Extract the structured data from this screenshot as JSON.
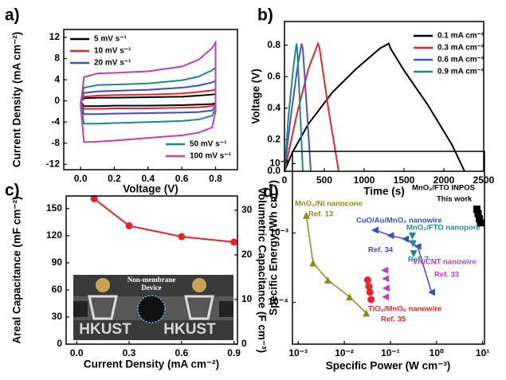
{
  "chart_data": [
    {
      "panel_label": "a)",
      "type": "line",
      "x_label": "Voltage (V)",
      "y_label": "Current Density (mA cm⁻²)",
      "xlim": [
        -0.1,
        0.93
      ],
      "ylim": [
        -13,
        13.5
      ],
      "xticks": [
        {
          "value": 0,
          "label": "0.0"
        },
        0.2,
        0.4,
        0.6,
        0.8
      ],
      "yticks": [
        -12,
        -8,
        -4,
        0,
        4,
        8,
        12
      ],
      "x": [
        0,
        0.02,
        0.1,
        0.2,
        0.4,
        0.6,
        0.7,
        0.78,
        0.8,
        0.8,
        0.78,
        0.7,
        0.6,
        0.4,
        0.2,
        0.1,
        0.02,
        0
      ],
      "series": [
        {
          "name": "5 mV s⁻¹",
          "color": "#000000",
          "legend": "upper left",
          "values": [
            -0.1,
            0.5,
            0.6,
            0.6,
            0.7,
            0.8,
            1,
            1.2,
            1.3,
            -0.4,
            -0.6,
            -0.7,
            -0.8,
            -0.9,
            -0.9,
            -1,
            -1,
            -0.1
          ]
        },
        {
          "name": "10 mV s⁻¹",
          "color": "#e3262b",
          "legend": "upper left",
          "values": [
            -0.2,
            0.8,
            1,
            1.1,
            1.2,
            1.4,
            1.7,
            2,
            2.2,
            -0.6,
            -1,
            -1.2,
            -1.3,
            -1.4,
            -1.4,
            -1.5,
            -1.5,
            -0.2
          ]
        },
        {
          "name": "20 mV s⁻¹",
          "color": "#3a4fbf",
          "legend": "upper left",
          "values": [
            -0.3,
            1.5,
            1.8,
            1.9,
            2.1,
            2.5,
            2.9,
            3.5,
            3.8,
            -1,
            -1.8,
            -2.1,
            -2.2,
            -2.3,
            -2.4,
            -2.5,
            -2.5,
            -0.3
          ]
        },
        {
          "name": "50 mV s⁻¹",
          "color": "#1f8a83",
          "legend": "lower right",
          "values": [
            -0.5,
            2.5,
            3,
            3.1,
            3.3,
            3.9,
            4.6,
            5.8,
            6.3,
            -1.5,
            -2.8,
            -3.5,
            -3.8,
            -4,
            -4.2,
            -4.3,
            -4.3,
            -0.5
          ]
        },
        {
          "name": "100 mV s⁻¹",
          "color": "#c03fb8",
          "legend": "lower right",
          "values": [
            -1,
            4.5,
            5.2,
            5.3,
            5.6,
            6.5,
            7.8,
            10,
            11,
            -2,
            -5,
            -6,
            -6.5,
            -7,
            -7.5,
            -7.7,
            -7.8,
            -1
          ]
        }
      ]
    },
    {
      "panel_label": "b)",
      "type": "line",
      "x_label": "Time (s)",
      "y_label": "Voltage (V)",
      "xlim": [
        0,
        2500
      ],
      "ylim": [
        0,
        0.95
      ],
      "xticks": [
        0,
        500,
        1000,
        1500,
        2000,
        2500
      ],
      "yticks": [
        {
          "value": 0,
          "label": "0.0"
        },
        0.2,
        0.4,
        0.6,
        0.8
      ],
      "series": [
        {
          "name": "0.1 mA cm⁻²",
          "color": "#000000",
          "legend": "upper right",
          "x": [
            0,
            100,
            300,
            600,
            900,
            1200,
            1310,
            1330,
            1500,
            1800,
            2100,
            2260
          ],
          "values": [
            0,
            0.12,
            0.3,
            0.5,
            0.65,
            0.78,
            0.81,
            0.78,
            0.64,
            0.42,
            0.17,
            0
          ]
        },
        {
          "name": "0.3 mA cm⁻²",
          "color": "#e3262b",
          "legend": "upper right",
          "x": [
            0,
            150,
            300,
            420,
            440,
            550,
            680
          ],
          "values": [
            0,
            0.35,
            0.65,
            0.81,
            0.78,
            0.4,
            0
          ]
        },
        {
          "name": "0.6 mA cm⁻²",
          "color": "#4a56c8",
          "legend": "upper right",
          "x": [
            0,
            80,
            160,
            215,
            230,
            280,
            330
          ],
          "values": [
            0,
            0.35,
            0.65,
            0.81,
            0.78,
            0.4,
            0
          ]
        },
        {
          "name": "0.9 mA cm⁻²",
          "color": "#1f8a83",
          "legend": "upper right",
          "x": [
            0,
            50,
            110,
            150,
            160,
            195,
            230
          ],
          "values": [
            0,
            0.35,
            0.65,
            0.81,
            0.78,
            0.4,
            0
          ]
        }
      ]
    },
    {
      "panel_label": "c)",
      "type": "line",
      "x_label": "Current Density (mA cm⁻²)",
      "y_label": "Areal Capacitance (mF cm⁻²)",
      "y2_label": "Volumetric Capacitance (F cm⁻³)",
      "xlim": [
        -0.06,
        0.92
      ],
      "ylim": [
        0,
        164
      ],
      "y2lim": [
        0,
        33.2
      ],
      "xticks": [
        {
          "value": 0,
          "label": "0.0"
        },
        0.3,
        0.6,
        0.9
      ],
      "yticks": [
        0,
        30,
        60,
        90,
        120,
        150
      ],
      "y2ticks": [
        0,
        10,
        20,
        30
      ],
      "series": [
        {
          "color": "#e3262b",
          "marker": "circle",
          "x": [
            0.1,
            0.3,
            0.6,
            0.9
          ],
          "values": [
            161,
            131,
            119,
            113
          ]
        }
      ],
      "inset": [
        "Non-membrane",
        "Device",
        "HKUST",
        "HKUST"
      ]
    },
    {
      "panel_label": "d)",
      "type": "scatter",
      "x_label": "Specific Power (W cm⁻³)",
      "y_label": "Specific Energy (Wh cm⁻³)",
      "log_x": true,
      "log_y": true,
      "xlim": [
        0.00075,
        11
      ],
      "ylim": [
        2.5e-05,
        0.015
      ],
      "xticks": [
        {
          "value": 0.001,
          "label": "10⁻³"
        },
        {
          "value": 0.01,
          "label": "10⁻²"
        },
        {
          "value": 0.1,
          "label": "10⁻¹"
        },
        {
          "value": 1,
          "label": "10⁰"
        },
        {
          "value": 10,
          "label": "10¹"
        }
      ],
      "yticks": [
        {
          "value": 0.0001,
          "label": "10⁻⁴"
        },
        {
          "value": 0.001,
          "label": "10⁻³"
        },
        {
          "value": 0.01,
          "label": "10⁻²"
        }
      ],
      "series": [
        {
          "name": "MnO₂/Ni nanocone",
          "ref": "Ref. 13",
          "color": "#8b8b1e",
          "marker": "triangle-up",
          "connected": true,
          "x": [
            0.0015,
            0.0021,
            0.0044,
            0.013,
            0.03
          ],
          "values": [
            0.0018,
            0.00037,
            0.00021,
            0.00012,
            7e-05
          ]
        },
        {
          "name": "CuO/Au/MnO₂ nanowire",
          "ref": "Ref. 34",
          "color": "#3a4fbf",
          "marker": "triangle-left",
          "connected": true,
          "x": [
            0.046,
            0.1,
            0.21,
            0.39,
            0.78
          ],
          "values": [
            0.0011,
            0.00092,
            0.00082,
            0.00064,
            0.00014
          ]
        },
        {
          "name": "MnO₂/FTO nanopore",
          "ref": "Ref. 7",
          "color": "#1f8a83",
          "marker": "triangle-down",
          "connected": false,
          "x": [
            0.3,
            0.31,
            0.32
          ],
          "values": [
            0.0009,
            0.0007,
            0.0005
          ]
        },
        {
          "name": "VN/CNT nanowire",
          "ref": "Ref. 33",
          "color": "#c03fb8",
          "marker": "triangle-left",
          "connected": false,
          "x": [
            0.075,
            0.078,
            0.08,
            0.078
          ],
          "values": [
            0.00029,
            0.00022,
            0.00016,
            0.00012
          ]
        },
        {
          "name": "TiO₂/MnO₂ nanowire",
          "ref": "Ref. 35",
          "color": "#e3262b",
          "marker": "circle",
          "connected": false,
          "x": [
            0.032,
            0.034,
            0.036,
            0.038
          ],
          "values": [
            0.00021,
            0.00017,
            0.00014,
            0.00011
          ]
        },
        {
          "name": "MnO₂/FTO INPOS",
          "ref": "This work",
          "color": "#000000",
          "marker": "square",
          "connected": false,
          "x": [
            7.5,
            8,
            8.5,
            9
          ],
          "values": [
            0.0022,
            0.0019,
            0.0016,
            0.0014
          ]
        }
      ]
    }
  ]
}
